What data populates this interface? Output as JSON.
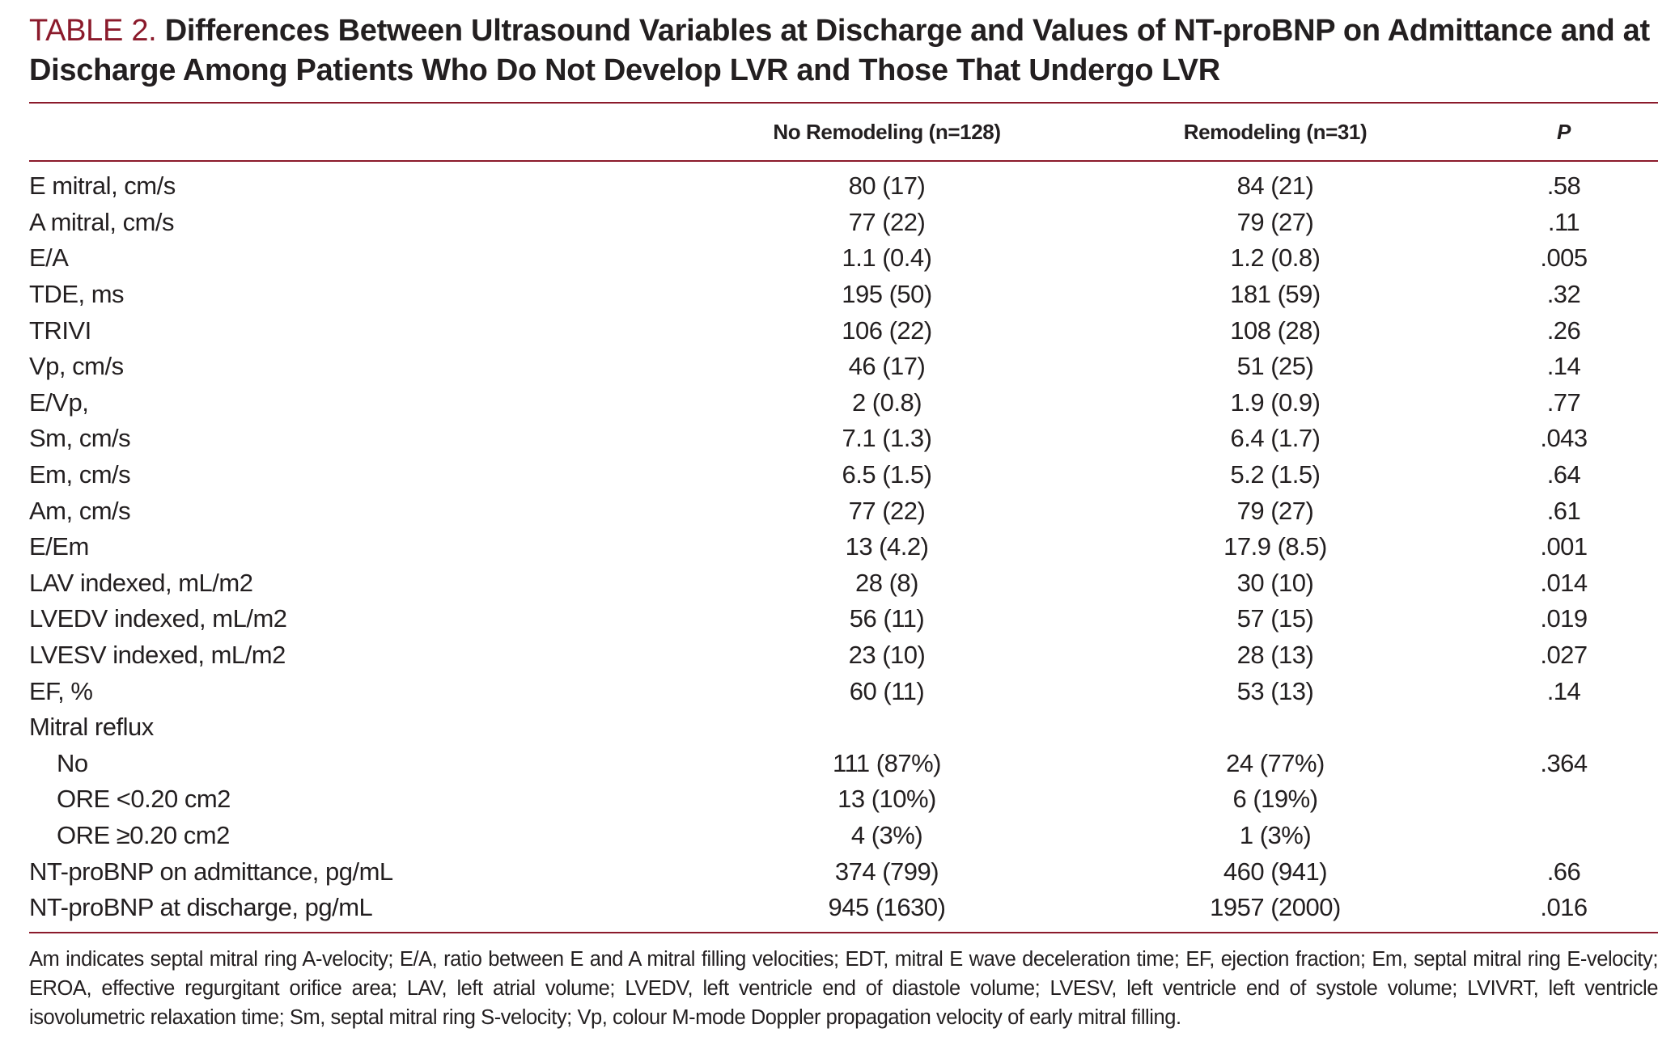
{
  "caption": {
    "label": "TABLE 2.",
    "title": "Differences Between Ultrasound Variables at Discharge and Values of NT-proBNP on Admittance and at Discharge Among Patients Who Do Not Develop LVR and Those That Undergo LVR"
  },
  "table": {
    "headers": [
      "",
      "No Remodeling (n=128)",
      "Remodeling (n=31)",
      "P"
    ],
    "rows": [
      {
        "variable": "E mitral, cm/s",
        "no_remodeling": "80 (17)",
        "remodeling": "84 (21)",
        "p": ".58"
      },
      {
        "variable": "A mitral, cm/s",
        "no_remodeling": "77 (22)",
        "remodeling": "79 (27)",
        "p": ".11"
      },
      {
        "variable": "E/A",
        "no_remodeling": "1.1 (0.4)",
        "remodeling": "1.2 (0.8)",
        "p": ".005"
      },
      {
        "variable": "TDE, ms",
        "no_remodeling": "195 (50)",
        "remodeling": "181 (59)",
        "p": ".32"
      },
      {
        "variable": "TRIVI",
        "no_remodeling": "106 (22)",
        "remodeling": "108 (28)",
        "p": ".26"
      },
      {
        "variable": "Vp, cm/s",
        "no_remodeling": "46 (17)",
        "remodeling": "51 (25)",
        "p": ".14"
      },
      {
        "variable": "E/Vp,",
        "no_remodeling": "2 (0.8)",
        "remodeling": "1.9 (0.9)",
        "p": ".77"
      },
      {
        "variable": "Sm, cm/s",
        "no_remodeling": "7.1 (1.3)",
        "remodeling": "6.4 (1.7)",
        "p": ".043"
      },
      {
        "variable": "Em, cm/s",
        "no_remodeling": "6.5 (1.5)",
        "remodeling": "5.2 (1.5)",
        "p": ".64"
      },
      {
        "variable": "Am, cm/s",
        "no_remodeling": "77 (22)",
        "remodeling": "79 (27)",
        "p": ".61"
      },
      {
        "variable": "E/Em",
        "no_remodeling": "13 (4.2)",
        "remodeling": "17.9 (8.5)",
        "p": ".001"
      },
      {
        "variable": "LAV indexed, mL/m2",
        "no_remodeling": "28 (8)",
        "remodeling": "30 (10)",
        "p": ".014"
      },
      {
        "variable": "LVEDV indexed, mL/m2",
        "no_remodeling": "56 (11)",
        "remodeling": "57 (15)",
        "p": ".019"
      },
      {
        "variable": "LVESV indexed, mL/m2",
        "no_remodeling": "23 (10)",
        "remodeling": "28 (13)",
        "p": ".027"
      },
      {
        "variable": "EF, %",
        "no_remodeling": "60 (11)",
        "remodeling": "53 (13)",
        "p": ".14"
      },
      {
        "variable": "Mitral reflux",
        "no_remodeling": "",
        "remodeling": "",
        "p": ""
      },
      {
        "variable": "No",
        "no_remodeling": "111 (87%)",
        "remodeling": "24 (77%)",
        "p": ".364"
      },
      {
        "variable": "ORE <0.20 cm2",
        "no_remodeling": "13 (10%)",
        "remodeling": "6 (19%)",
        "p": ""
      },
      {
        "variable": "ORE ≥0.20 cm2",
        "no_remodeling": "4 (3%)",
        "remodeling": "1 (3%)",
        "p": ""
      },
      {
        "variable": "NT-proBNP on admittance, pg/mL",
        "no_remodeling": "374 (799)",
        "remodeling": "460 (941)",
        "p": ".66"
      },
      {
        "variable": "NT-proBNP at discharge, pg/mL",
        "no_remodeling": "945 (1630)",
        "remodeling": "1957 (2000)",
        "p": ".016"
      }
    ]
  },
  "footnote": "Am indicates septal mitral ring A-velocity; E/A, ratio between E and A mitral filling velocities; EDT, mitral E wave deceleration time; EF, ejection fraction; Em, septal mitral ring E-velocity; EROA, effective regurgitant orifice area; LAV, left atrial volume; LVEDV, left ventricle end of diastole volume; LVESV, left ventricle end of systole volume; LVIVRT, left ventricle isovolumetric relaxation time; Sm, septal mitral ring S-velocity; Vp, colour M-mode Doppler propagation velocity of early mitral filling.",
  "colors": {
    "accent": "#8b1a2b",
    "text": "#231f20"
  }
}
